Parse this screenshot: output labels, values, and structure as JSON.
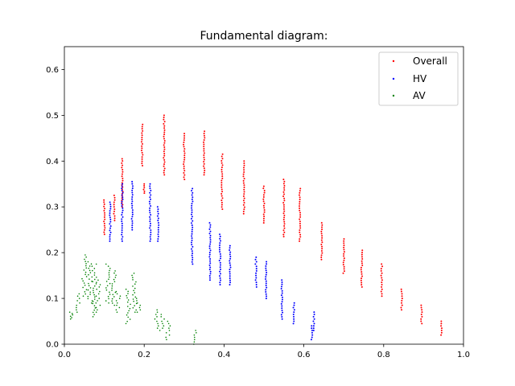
{
  "chart_data": {
    "type": "scatter",
    "title": "Fundamental diagram:",
    "xlabel": "",
    "ylabel": "",
    "xlim": [
      0.0,
      1.0
    ],
    "ylim": [
      0.0,
      0.65
    ],
    "x_ticks": [
      "0.0",
      "0.2",
      "0.4",
      "0.6",
      "0.8",
      "1.0"
    ],
    "y_ticks": [
      "0.0",
      "0.1",
      "0.2",
      "0.3",
      "0.4",
      "0.5",
      "0.6"
    ],
    "grid": false,
    "legend_position": "top-right",
    "series": [
      {
        "name": "Overall",
        "color": "#ff0000",
        "clusters": [
          {
            "x": 0.1,
            "y_min": 0.24,
            "y_max": 0.315
          },
          {
            "x": 0.125,
            "y_min": 0.27,
            "y_max": 0.325
          },
          {
            "x": 0.145,
            "y_min": 0.3,
            "y_max": 0.405
          },
          {
            "x": 0.195,
            "y_min": 0.39,
            "y_max": 0.48
          },
          {
            "x": 0.2,
            "y_min": 0.33,
            "y_max": 0.35
          },
          {
            "x": 0.25,
            "y_min": 0.37,
            "y_max": 0.5
          },
          {
            "x": 0.3,
            "y_min": 0.36,
            "y_max": 0.46
          },
          {
            "x": 0.35,
            "y_min": 0.37,
            "y_max": 0.465
          },
          {
            "x": 0.395,
            "y_min": 0.295,
            "y_max": 0.415
          },
          {
            "x": 0.45,
            "y_min": 0.285,
            "y_max": 0.4
          },
          {
            "x": 0.5,
            "y_min": 0.265,
            "y_max": 0.345
          },
          {
            "x": 0.55,
            "y_min": 0.235,
            "y_max": 0.36
          },
          {
            "x": 0.59,
            "y_min": 0.225,
            "y_max": 0.34
          },
          {
            "x": 0.645,
            "y_min": 0.185,
            "y_max": 0.265
          },
          {
            "x": 0.7,
            "y_min": 0.155,
            "y_max": 0.23
          },
          {
            "x": 0.745,
            "y_min": 0.125,
            "y_max": 0.205
          },
          {
            "x": 0.795,
            "y_min": 0.105,
            "y_max": 0.175
          },
          {
            "x": 0.845,
            "y_min": 0.075,
            "y_max": 0.12
          },
          {
            "x": 0.895,
            "y_min": 0.045,
            "y_max": 0.085
          },
          {
            "x": 0.945,
            "y_min": 0.02,
            "y_max": 0.05
          }
        ]
      },
      {
        "name": "HV",
        "color": "#0000ff",
        "clusters": [
          {
            "x": 0.115,
            "y_min": 0.225,
            "y_max": 0.31
          },
          {
            "x": 0.145,
            "y_min": 0.225,
            "y_max": 0.35
          },
          {
            "x": 0.17,
            "y_min": 0.25,
            "y_max": 0.355
          },
          {
            "x": 0.215,
            "y_min": 0.225,
            "y_max": 0.35
          },
          {
            "x": 0.235,
            "y_min": 0.225,
            "y_max": 0.3
          },
          {
            "x": 0.32,
            "y_min": 0.175,
            "y_max": 0.34
          },
          {
            "x": 0.365,
            "y_min": 0.14,
            "y_max": 0.265
          },
          {
            "x": 0.39,
            "y_min": 0.13,
            "y_max": 0.24
          },
          {
            "x": 0.415,
            "y_min": 0.13,
            "y_max": 0.215
          },
          {
            "x": 0.48,
            "y_min": 0.125,
            "y_max": 0.19
          },
          {
            "x": 0.505,
            "y_min": 0.1,
            "y_max": 0.18
          },
          {
            "x": 0.545,
            "y_min": 0.055,
            "y_max": 0.14
          },
          {
            "x": 0.575,
            "y_min": 0.045,
            "y_max": 0.09
          },
          {
            "x": 0.62,
            "y_min": 0.01,
            "y_max": 0.04
          },
          {
            "x": 0.625,
            "y_min": 0.03,
            "y_max": 0.07
          }
        ]
      },
      {
        "name": "AV",
        "color": "#008000",
        "clusters": [
          {
            "x": 0.015,
            "y_min": 0.055,
            "y_max": 0.07
          },
          {
            "x": 0.035,
            "y_min": 0.07,
            "y_max": 0.11
          },
          {
            "x": 0.05,
            "y_min": 0.105,
            "y_max": 0.195
          },
          {
            "x": 0.065,
            "y_min": 0.09,
            "y_max": 0.18
          },
          {
            "x": 0.075,
            "y_min": 0.06,
            "y_max": 0.175
          },
          {
            "x": 0.085,
            "y_min": 0.07,
            "y_max": 0.14
          },
          {
            "x": 0.11,
            "y_min": 0.09,
            "y_max": 0.175
          },
          {
            "x": 0.125,
            "y_min": 0.085,
            "y_max": 0.16
          },
          {
            "x": 0.135,
            "y_min": 0.07,
            "y_max": 0.115
          },
          {
            "x": 0.16,
            "y_min": 0.045,
            "y_max": 0.12
          },
          {
            "x": 0.175,
            "y_min": 0.07,
            "y_max": 0.155
          },
          {
            "x": 0.185,
            "y_min": 0.07,
            "y_max": 0.1
          },
          {
            "x": 0.23,
            "y_min": 0.035,
            "y_max": 0.075
          },
          {
            "x": 0.245,
            "y_min": 0.03,
            "y_max": 0.065
          },
          {
            "x": 0.26,
            "y_min": 0.01,
            "y_max": 0.05
          },
          {
            "x": 0.33,
            "y_min": 0.0,
            "y_max": 0.03
          }
        ]
      }
    ]
  }
}
